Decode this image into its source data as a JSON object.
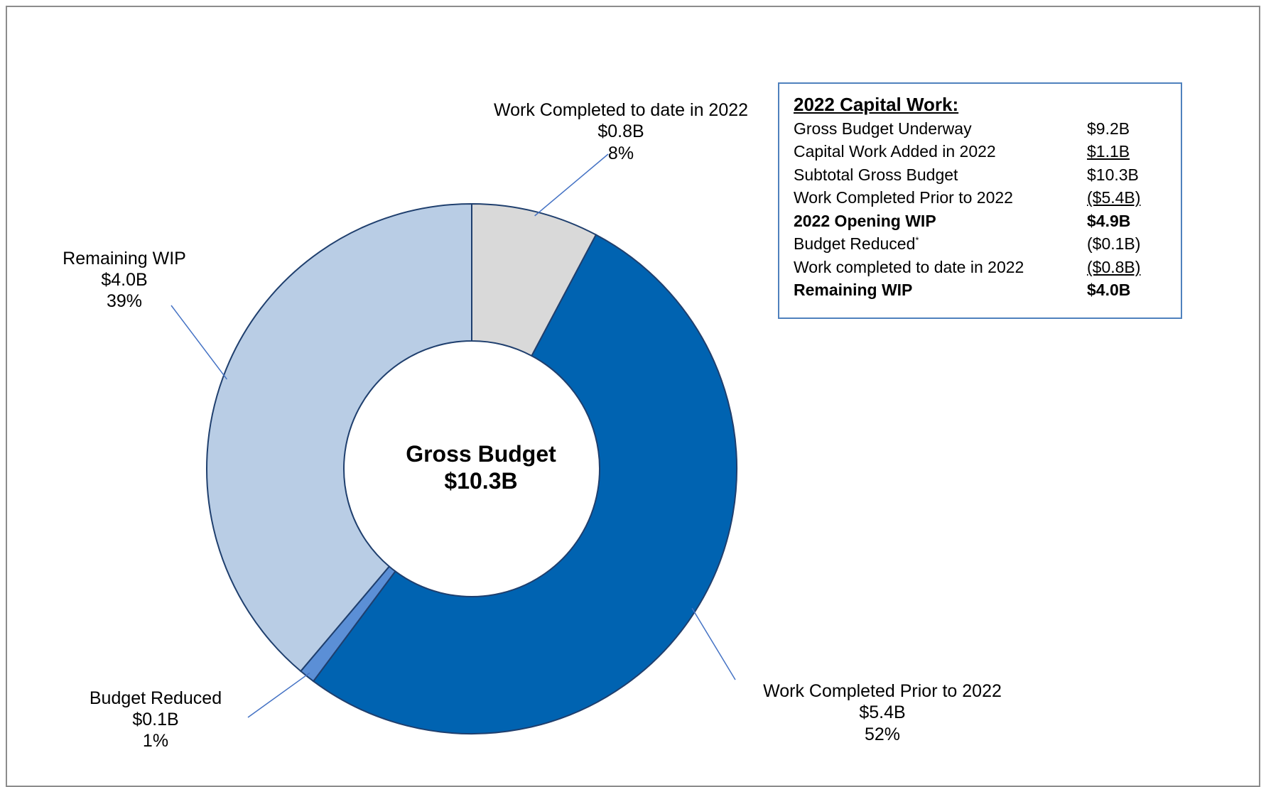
{
  "chart_data": {
    "type": "pie",
    "style": "donut",
    "center_title": "Gross Budget",
    "center_value": "$10.3B",
    "slices": [
      {
        "name": "Work Completed to date in 2022",
        "value": 0.8,
        "percent": 8,
        "value_label": "$0.8B",
        "percent_label": "8%",
        "color": "#d9d9d9"
      },
      {
        "name": "Work Completed Prior to 2022",
        "value": 5.4,
        "percent": 52,
        "value_label": "$5.4B",
        "percent_label": "52%",
        "color": "#0063b1"
      },
      {
        "name": "Budget Reduced",
        "value": 0.1,
        "percent": 1,
        "value_label": "$0.1B",
        "percent_label": "1%",
        "color": "#5b8fd6"
      },
      {
        "name": "Remaining WIP",
        "value": 4.0,
        "percent": 39,
        "value_label": "$4.0B",
        "percent_label": "39%",
        "color": "#b9cde5"
      }
    ],
    "slice_outline_color": "#1f3f6e"
  },
  "summary": {
    "title": "2022 Capital Work:",
    "rows": [
      {
        "label": "Gross Budget Underway",
        "value": "$9.2B"
      },
      {
        "label": "Capital Work Added in 2022",
        "value": "$1.1B"
      },
      {
        "label": "Subtotal Gross Budget",
        "value": "$10.3B"
      },
      {
        "label": "Work Completed Prior to 2022",
        "value": "($5.4B)"
      },
      {
        "label": "2022 Opening WIP",
        "value": "$4.9B"
      },
      {
        "label": "Budget Reduced",
        "label_sup": "*",
        "value": "($0.1B)"
      },
      {
        "label": "Work completed to date in 2022",
        "value": "($0.8B)"
      },
      {
        "label": "Remaining WIP",
        "value": "$4.0B"
      }
    ]
  }
}
